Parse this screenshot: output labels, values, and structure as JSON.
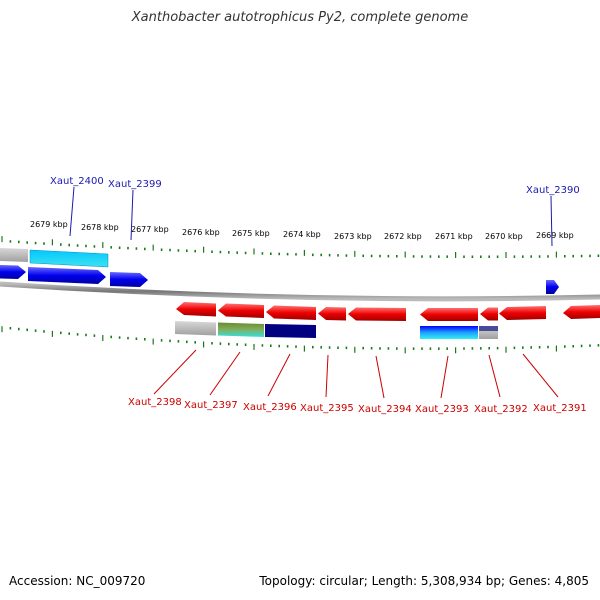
{
  "title": "Xanthobacter autotrophicus Py2, complete genome",
  "footer": {
    "accession": "Accession: NC_009720",
    "summary": "Topology: circular; Length: 5,308,934 bp; Genes: 4,805"
  },
  "colors": {
    "forward_strand": "#0000ee",
    "reverse_strand": "#ee0000",
    "tick": "#1a7a1a",
    "backbone": "#888888",
    "forward_label": "#1a1ab0",
    "reverse_label": "#cc0000"
  },
  "scale_labels": [
    "2679 kbp",
    "2678 kbp",
    "2677 kbp",
    "2676 kbp",
    "2675 kbp",
    "2674 kbp",
    "2673 kbp",
    "2672 kbp",
    "2671 kbp",
    "2670 kbp",
    "2669 kbp"
  ],
  "forward_genes": [
    "Xaut_2400",
    "Xaut_2399",
    "Xaut_2390"
  ],
  "reverse_genes": [
    "Xaut_2398",
    "Xaut_2397",
    "Xaut_2396",
    "Xaut_2395",
    "Xaut_2394",
    "Xaut_2393",
    "Xaut_2392",
    "Xaut_2391"
  ]
}
